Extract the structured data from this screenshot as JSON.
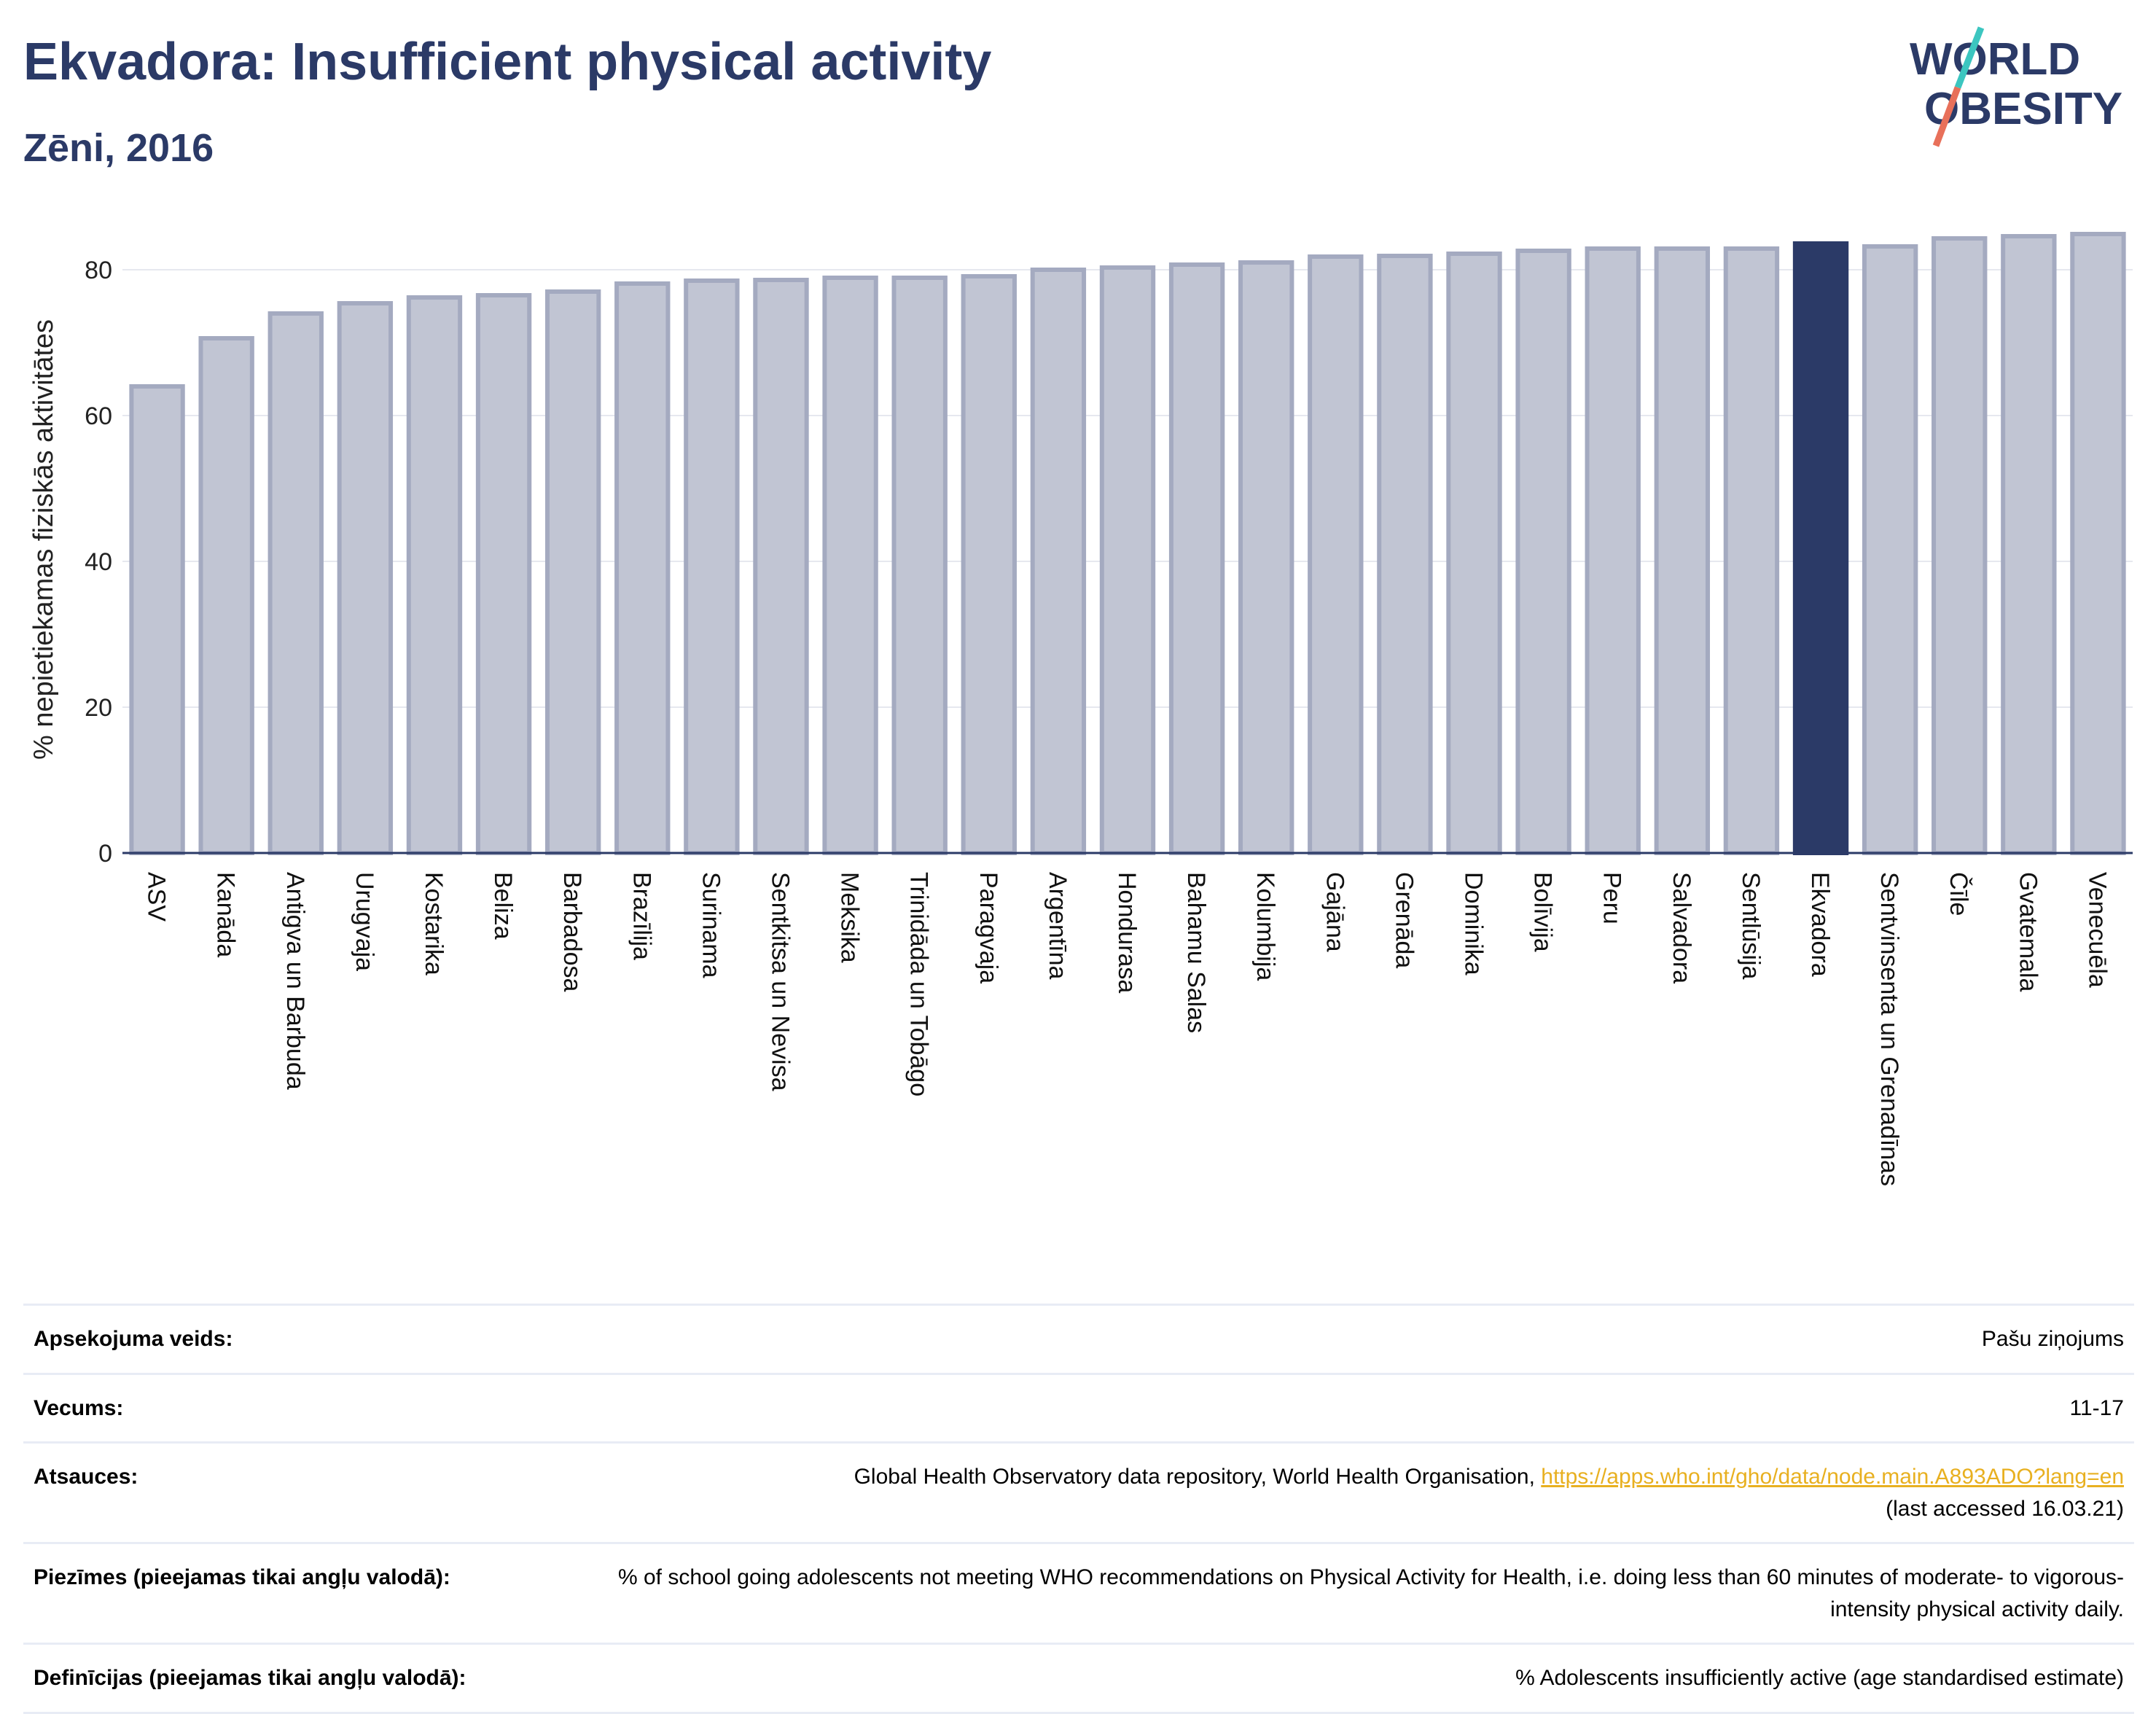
{
  "header": {
    "title": "Ekvadora: Insufficient physical activity",
    "subtitle": "Zēni, 2016"
  },
  "logo": {
    "line1": "WORLD",
    "line2": "OBESITY",
    "slash_colors": [
      "#3cc6c0",
      "#e8705a"
    ],
    "text_color": "#2b3a67"
  },
  "colors": {
    "bar": "#c1c5d3",
    "bar_border": "#a4aac0",
    "highlight": "#2b3a67",
    "grid": "#e6e8ef",
    "axis": "#2b3a67"
  },
  "chart_data": {
    "type": "bar",
    "title": "",
    "xlabel": "",
    "ylabel": "% nepietiekamas fiziskās aktivitātes",
    "ylim": [
      0,
      88
    ],
    "yticks": [
      0,
      20,
      40,
      60,
      80
    ],
    "grid": true,
    "highlight": "Ekvadora",
    "categories": [
      "ASV",
      "Kanāda",
      "Antigva un Barbuda",
      "Urugvaja",
      "Kostarika",
      "Beliza",
      "Barbadosa",
      "Brazīlija",
      "Surinama",
      "Sentkitsa un Nevisa",
      "Meksika",
      "Trinidāda un Tobāgo",
      "Paragvaja",
      "Argentīna",
      "Hondurasa",
      "Bahamu Salas",
      "Kolumbija",
      "Gajāna",
      "Grenāda",
      "Dominika",
      "Bolīvija",
      "Peru",
      "Salvadora",
      "Sentlūsija",
      "Ekvadora",
      "Sentvinsenta un Grenadīnas",
      "Čīle",
      "Gvatemala",
      "Venecuēla"
    ],
    "values": [
      64.0,
      70.6,
      74.0,
      75.4,
      76.2,
      76.5,
      77.0,
      78.1,
      78.5,
      78.6,
      78.9,
      78.9,
      79.1,
      80.0,
      80.3,
      80.7,
      81.0,
      81.8,
      81.9,
      82.2,
      82.6,
      82.9,
      82.9,
      82.9,
      83.6,
      83.2,
      84.3,
      84.6,
      84.9
    ]
  },
  "details": [
    {
      "key": "Apsekojuma veids:",
      "value": "Pašu ziņojums"
    },
    {
      "key": "Vecums:",
      "value": "11-17"
    },
    {
      "key": "Atsauces:",
      "value": "Global Health Observatory data repository, World Health Organisation,",
      "link": "https://apps.who.int/gho/data/node.main.A893ADO?lang=en",
      "value2": "(last accessed 16.03.21)"
    },
    {
      "key": "Piezīmes (pieejamas tikai angļu valodā):",
      "value": "% of school going adolescents not meeting WHO recommendations on Physical Activity for Health, i.e. doing less than 60 minutes of moderate- to vigorous-intensity physical activity daily."
    },
    {
      "key": "Definīcijas (pieejamas tikai angļu valodā):",
      "value": "% Adolescents insufficiently active (age standardised estimate)"
    }
  ]
}
